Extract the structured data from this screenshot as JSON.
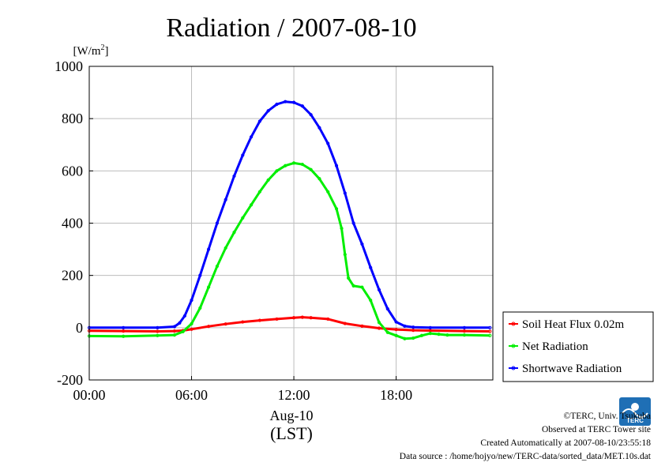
{
  "chart_data": {
    "type": "line",
    "title": "Radiation / 2007-08-10",
    "ylabel_unit": "[W/m",
    "ylabel_unit_sup": "2",
    "ylabel_unit_end": "]",
    "xlabel": "Aug-10",
    "xlabel2": "(LST)",
    "ylim": [
      -200,
      1000
    ],
    "xlim": [
      0,
      23.67
    ],
    "yticks": [
      -200,
      0,
      200,
      400,
      600,
      800,
      1000
    ],
    "ytick_labels": [
      "-200",
      "0",
      "200",
      "400",
      "600",
      "800",
      "1000"
    ],
    "xticks": [
      0,
      6,
      12,
      18
    ],
    "xtick_labels": [
      "00:00",
      "06:00",
      "12:00",
      "18:00"
    ],
    "grid": true,
    "legend_position": "right-bottom",
    "series": [
      {
        "name": "Soil Heat Flux 0.02m",
        "color": "#ff0000",
        "x": [
          0,
          2,
          4,
          5,
          5.5,
          6,
          7,
          8,
          9,
          10,
          11,
          12,
          12.5,
          13,
          14,
          15,
          16,
          17,
          18,
          19,
          20,
          22,
          23.5
        ],
        "y": [
          -12,
          -13,
          -14,
          -13,
          -11,
          -6,
          5,
          14,
          22,
          28,
          33,
          38,
          40,
          38,
          33,
          16,
          6,
          -2,
          -7,
          -10,
          -11,
          -13,
          -14
        ]
      },
      {
        "name": "Net Radiation",
        "color": "#00ee00",
        "x": [
          0,
          2,
          4,
          5,
          5.5,
          6,
          6.5,
          7,
          7.5,
          8,
          8.5,
          9,
          9.5,
          10,
          10.5,
          11,
          11.5,
          12,
          12.5,
          13,
          13.5,
          14,
          14.5,
          14.8,
          15,
          15.2,
          15.5,
          16,
          16.5,
          17,
          17.5,
          18,
          18.5,
          19,
          19.5,
          20,
          20.5,
          21,
          22,
          23.5
        ],
        "y": [
          -32,
          -33,
          -30,
          -28,
          -15,
          15,
          75,
          155,
          235,
          305,
          365,
          420,
          470,
          520,
          565,
          600,
          620,
          630,
          625,
          605,
          570,
          520,
          455,
          380,
          280,
          190,
          160,
          155,
          105,
          20,
          -18,
          -30,
          -42,
          -40,
          -30,
          -22,
          -25,
          -28,
          -28,
          -30
        ]
      },
      {
        "name": "Shortwave Radiation",
        "color": "#0000ff",
        "x": [
          0,
          2,
          4,
          5,
          5.3,
          5.6,
          6,
          6.5,
          7,
          7.5,
          8,
          8.5,
          9,
          9.5,
          10,
          10.5,
          11,
          11.5,
          12,
          12.5,
          13,
          13.5,
          14,
          14.5,
          15,
          15.5,
          16,
          16.5,
          17,
          17.5,
          18,
          18.5,
          19,
          20,
          22,
          23.5
        ],
        "y": [
          0,
          0,
          0,
          4,
          18,
          45,
          105,
          200,
          300,
          400,
          490,
          580,
          660,
          730,
          790,
          830,
          855,
          865,
          862,
          848,
          815,
          765,
          705,
          620,
          515,
          400,
          320,
          230,
          145,
          72,
          22,
          6,
          2,
          0,
          0,
          0
        ]
      }
    ]
  },
  "credits": {
    "copyright": "©TERC, Univ. Tsukuba",
    "site": "Observed at TERC Tower site",
    "created": "Created Automatically at 2007-08-10/23:55:18",
    "source": "Data source : /home/hojyo/new/TERC-data/sorted_data/MET.10s.dat"
  },
  "logo": {
    "icon": "terc-logo",
    "text": "TERC",
    "color": "#1f6fb5"
  }
}
